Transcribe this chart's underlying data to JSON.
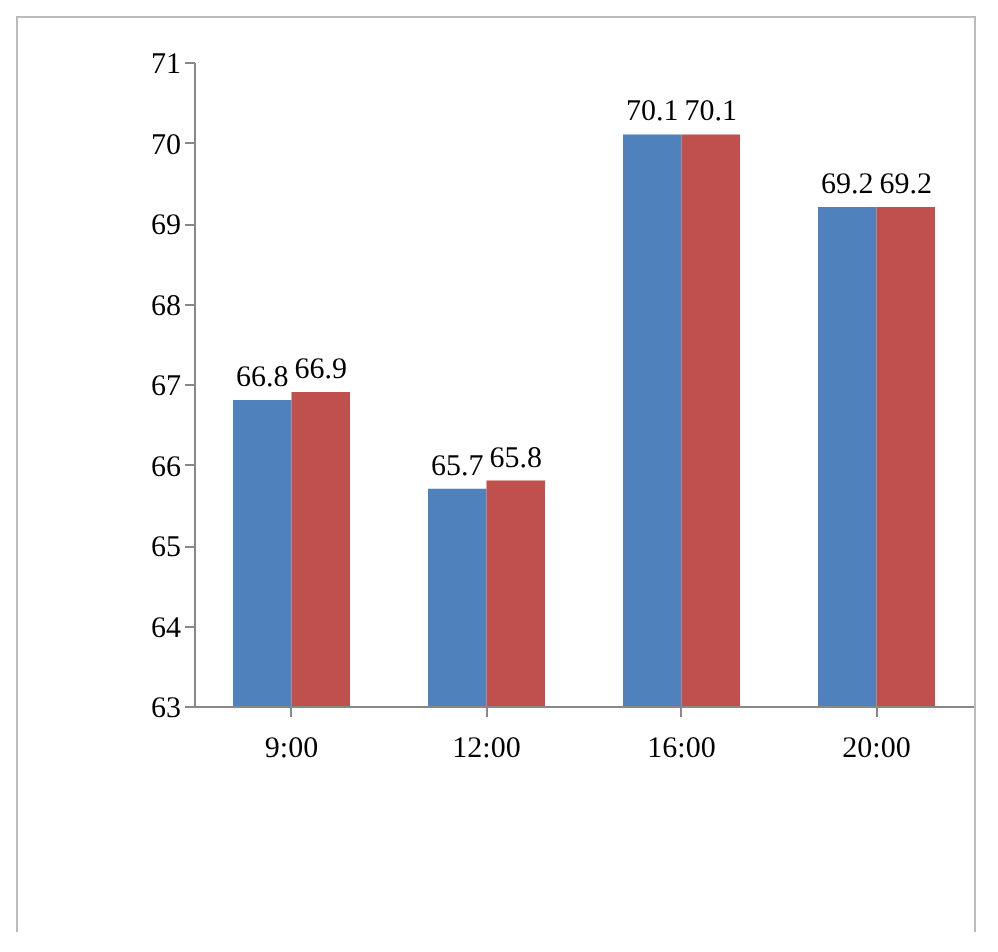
{
  "chart_data": {
    "type": "bar",
    "categories": [
      "9:00",
      "12:00",
      "16:00",
      "20:00"
    ],
    "series": [
      {
        "color": "#4f81bd",
        "values": [
          66.8,
          65.7,
          70.1,
          69.2
        ]
      },
      {
        "color": "#c0504d",
        "values": [
          66.9,
          65.8,
          70.1,
          69.2
        ]
      }
    ],
    "ylim": [
      63,
      71
    ],
    "yticks": [
      63,
      64,
      65,
      66,
      67,
      68,
      69,
      70,
      71
    ],
    "grid": false,
    "data_labels": true
  }
}
